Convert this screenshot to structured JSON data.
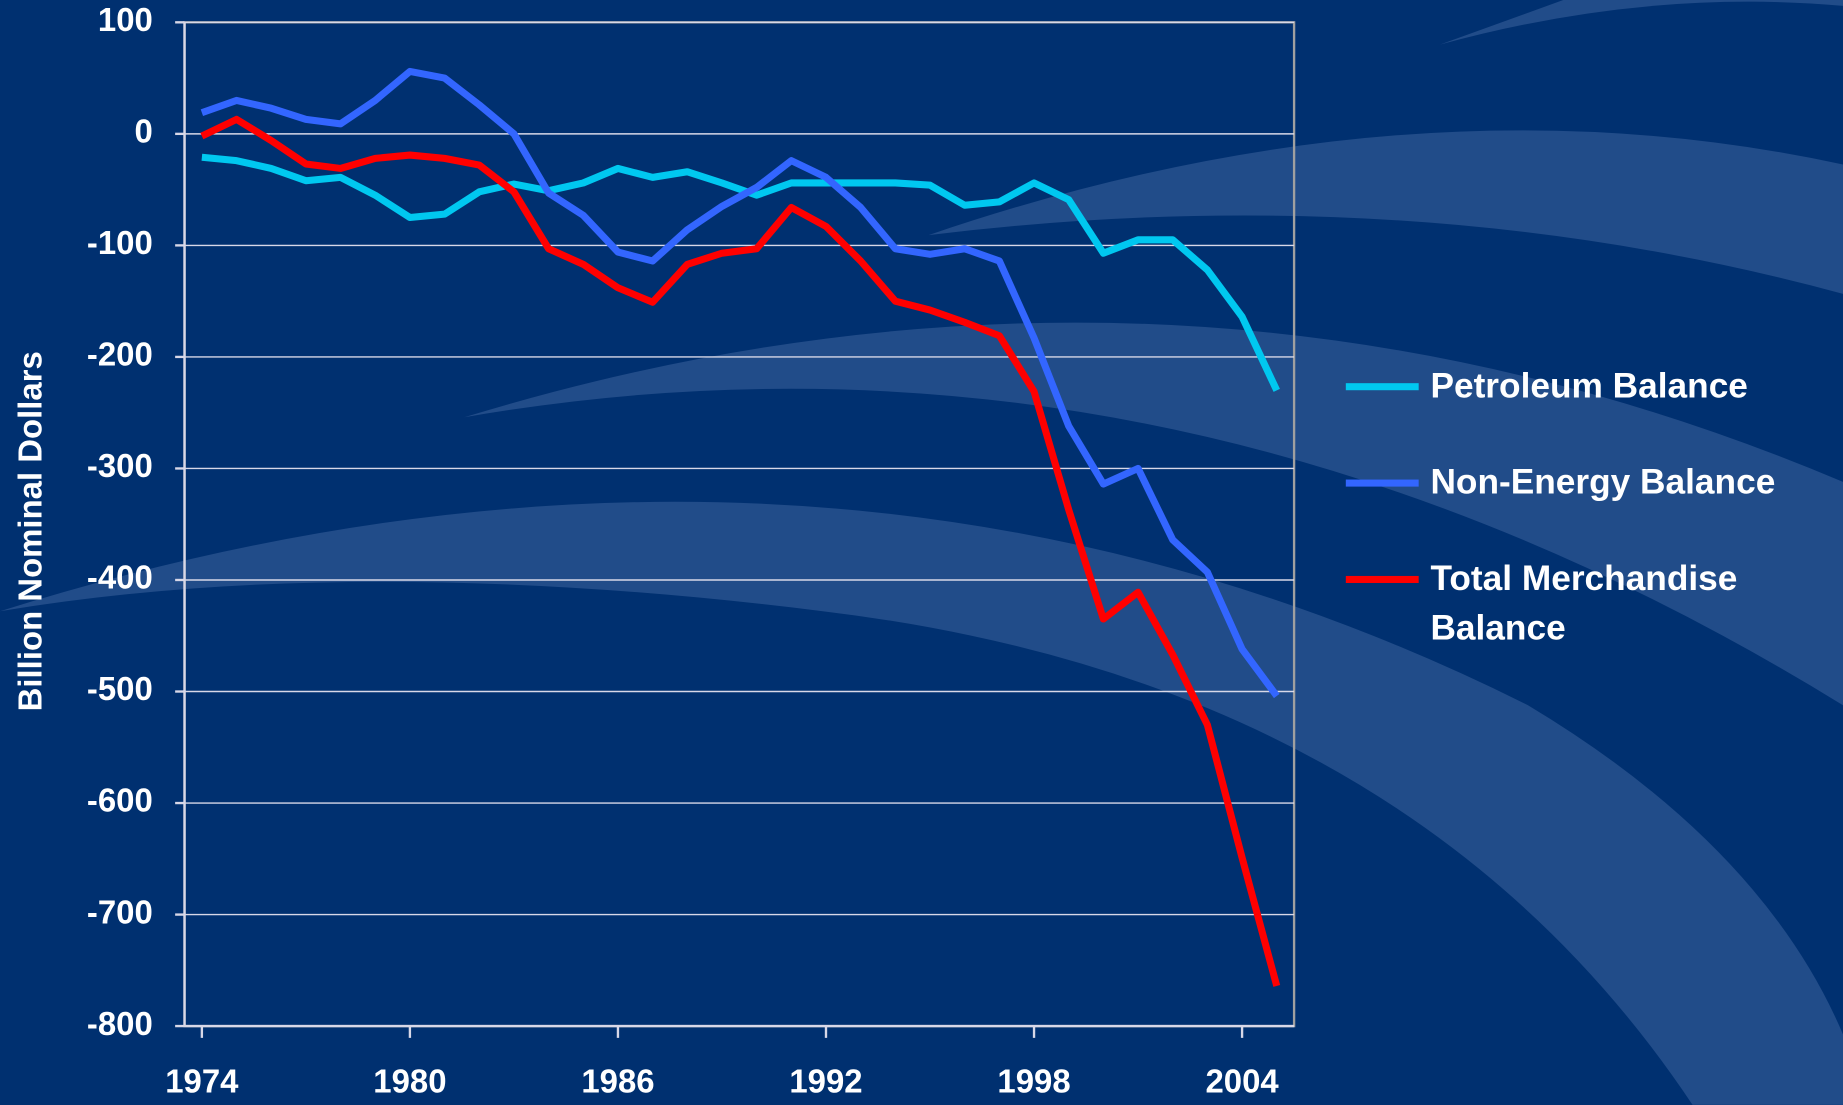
{
  "chart_data": {
    "type": "line",
    "y_label": "Billion Nominal Dollars",
    "x": [
      1974,
      1975,
      1976,
      1977,
      1978,
      1979,
      1980,
      1981,
      1982,
      1983,
      1984,
      1985,
      1986,
      1987,
      1988,
      1989,
      1990,
      1991,
      1992,
      1993,
      1994,
      1995,
      1996,
      1997,
      1998,
      1999,
      2000,
      2001,
      2002,
      2003,
      2004,
      2005
    ],
    "series": [
      {
        "name": "Petroleum Balance",
        "color": "#00c8f0",
        "values": [
          -21,
          -24,
          -31,
          -42,
          -39,
          -55,
          -75,
          -72,
          -52,
          -45,
          -51,
          -44,
          -31,
          -39,
          -34,
          -44,
          -55,
          -44,
          -44,
          -44,
          -44,
          -46,
          -64,
          -61,
          -44,
          -59,
          -107,
          -95,
          -95,
          -122,
          -164,
          -230
        ]
      },
      {
        "name": "Non-Energy Balance",
        "color": "#3366ff",
        "values": [
          19,
          30,
          23,
          13,
          9,
          30,
          56,
          50,
          26,
          0,
          -53,
          -73,
          -106,
          -114,
          -86,
          -65,
          -48,
          -24,
          -39,
          -66,
          -103,
          -108,
          -103,
          -114,
          -183,
          -262,
          -314,
          -300,
          -364,
          -393,
          -462,
          -504
        ]
      },
      {
        "name": "Total Merchandise Balance",
        "color": "#ff0000",
        "values": [
          -2,
          13,
          -6,
          -27,
          -31,
          -22,
          -19,
          -22,
          -28,
          -52,
          -103,
          -117,
          -138,
          -151,
          -117,
          -107,
          -103,
          -66,
          -83,
          -114,
          -150,
          -158,
          -169,
          -181,
          -231,
          -337,
          -435,
          -411,
          -467,
          -530,
          -649,
          -764
        ]
      }
    ],
    "xlim": [
      1973.5,
      2005.5
    ],
    "xticks": [
      1974,
      1980,
      1986,
      1992,
      1998,
      2004
    ],
    "ylim": [
      -800,
      100
    ],
    "yticks": [
      100,
      0,
      -100,
      -200,
      -300,
      -400,
      -500,
      -600,
      -700,
      -800
    ],
    "grid": true,
    "legend": "right"
  }
}
